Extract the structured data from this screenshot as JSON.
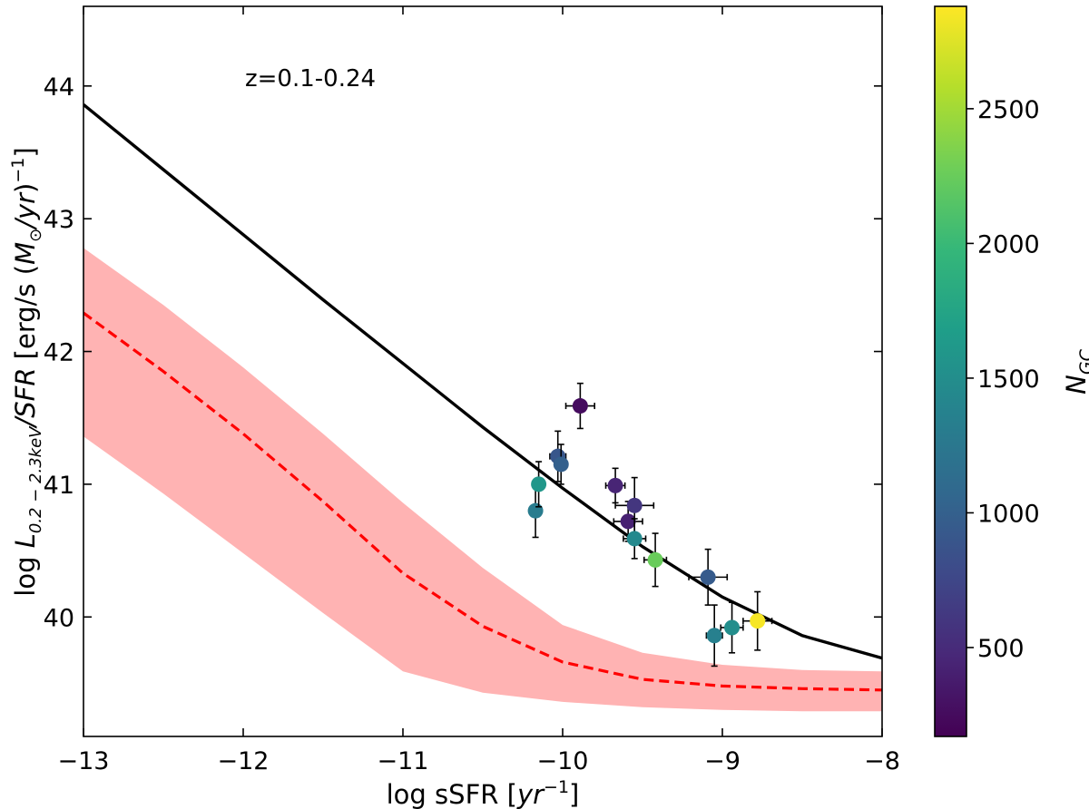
{
  "chart_data": {
    "type": "scatter",
    "annotation": "z=0.1-0.24",
    "xlabel_prefix": "log sSFR [",
    "xlabel_unit": "yr",
    "xlabel_exp": "−1",
    "xlabel_suffix": "]",
    "ylabel_prefix": "log ",
    "ylabel_L": "L",
    "ylabel_L_sub": "0.2 − 2.3keV",
    "ylabel_mid": "/SFR",
    "ylabel_units_open": " [erg/s (",
    "ylabel_M": "M",
    "ylabel_M_sub": "⊙",
    "ylabel_yr": "/yr",
    "ylabel_close": ")",
    "ylabel_exp": "−1",
    "ylabel_end": "]",
    "xlim": [
      -13,
      -8
    ],
    "ylim": [
      39.1,
      44.6
    ],
    "xticks": [
      -13,
      -12,
      -11,
      -10,
      -9,
      -8
    ],
    "xtick_labels": [
      "−13",
      "−12",
      "−11",
      "−10",
      "−9",
      "−8"
    ],
    "yticks": [
      40,
      41,
      42,
      43,
      44
    ],
    "ytick_labels": [
      "40",
      "41",
      "42",
      "43",
      "44"
    ],
    "colorbar": {
      "label": "N",
      "label_sub": "GC",
      "range": [
        170,
        2880
      ],
      "ticks": [
        500,
        1000,
        1500,
        2000,
        2500
      ],
      "tick_labels": [
        "500",
        "1000",
        "1500",
        "2000",
        "2500"
      ],
      "colormap": "viridis",
      "stops": [
        "#440154",
        "#482878",
        "#3e4989",
        "#31688e",
        "#26828e",
        "#1f9e89",
        "#35b779",
        "#6ece58",
        "#b5de2b",
        "#fde725"
      ]
    },
    "solid_curve": {
      "color": "#000000",
      "x": [
        -13,
        -12.5,
        -12,
        -11.5,
        -11,
        -10.5,
        -10,
        -9.5,
        -9,
        -8.5,
        -8
      ],
      "y": [
        43.86,
        43.37,
        42.88,
        42.39,
        41.91,
        41.43,
        40.97,
        40.53,
        40.15,
        39.86,
        39.69
      ]
    },
    "dashed_curve": {
      "color": "#ff0000",
      "x": [
        -13,
        -12.5,
        -12,
        -11.5,
        -11,
        -10.5,
        -10,
        -9.5,
        -9,
        -8.5,
        -8
      ],
      "y": [
        42.29,
        41.85,
        41.38,
        40.87,
        40.33,
        39.93,
        39.66,
        39.53,
        39.48,
        39.46,
        39.45
      ]
    },
    "band": {
      "color": "#ffb3b3",
      "x": [
        -13,
        -12.5,
        -12,
        -11.5,
        -11,
        -10.5,
        -10,
        -9.5,
        -9,
        -8.5,
        -8
      ],
      "upper": [
        42.78,
        42.35,
        41.88,
        41.38,
        40.86,
        40.37,
        39.94,
        39.73,
        39.64,
        39.6,
        39.59
      ],
      "lower": [
        41.36,
        40.93,
        40.48,
        40.03,
        39.59,
        39.43,
        39.36,
        39.32,
        39.3,
        39.29,
        39.29
      ]
    },
    "points": [
      {
        "x": -10.17,
        "y": 40.8,
        "xerr": 0.02,
        "yerr": 0.2,
        "ngc": 1300
      },
      {
        "x": -10.15,
        "y": 41.0,
        "xerr": 0.03,
        "yerr": 0.17,
        "ngc": 1600
      },
      {
        "x": -10.03,
        "y": 41.21,
        "xerr": 0.05,
        "yerr": 0.19,
        "ngc": 900
      },
      {
        "x": -10.01,
        "y": 41.15,
        "xerr": 0.04,
        "yerr": 0.15,
        "ngc": 1000
      },
      {
        "x": -9.89,
        "y": 41.59,
        "xerr": 0.09,
        "yerr": 0.17,
        "ngc": 250
      },
      {
        "x": -9.67,
        "y": 40.99,
        "xerr": 0.06,
        "yerr": 0.13,
        "ngc": 450
      },
      {
        "x": -9.59,
        "y": 40.72,
        "xerr": 0.09,
        "yerr": 0.15,
        "ngc": 420
      },
      {
        "x": -9.55,
        "y": 40.84,
        "xerr": 0.12,
        "yerr": 0.21,
        "ngc": 600
      },
      {
        "x": -9.55,
        "y": 40.59,
        "xerr": 0.07,
        "yerr": 0.15,
        "ngc": 1450
      },
      {
        "x": -9.42,
        "y": 40.43,
        "xerr": 0.07,
        "yerr": 0.2,
        "ngc": 2250
      },
      {
        "x": -9.09,
        "y": 40.3,
        "xerr": 0.12,
        "yerr": 0.21,
        "ngc": 950
      },
      {
        "x": -9.05,
        "y": 39.86,
        "xerr": 0.05,
        "yerr": 0.23,
        "ngc": 1350
      },
      {
        "x": -8.94,
        "y": 39.92,
        "xerr": 0.07,
        "yerr": 0.19,
        "ngc": 1500
      },
      {
        "x": -8.78,
        "y": 39.97,
        "xerr": 0.09,
        "yerr": 0.22,
        "ngc": 2850
      }
    ]
  }
}
